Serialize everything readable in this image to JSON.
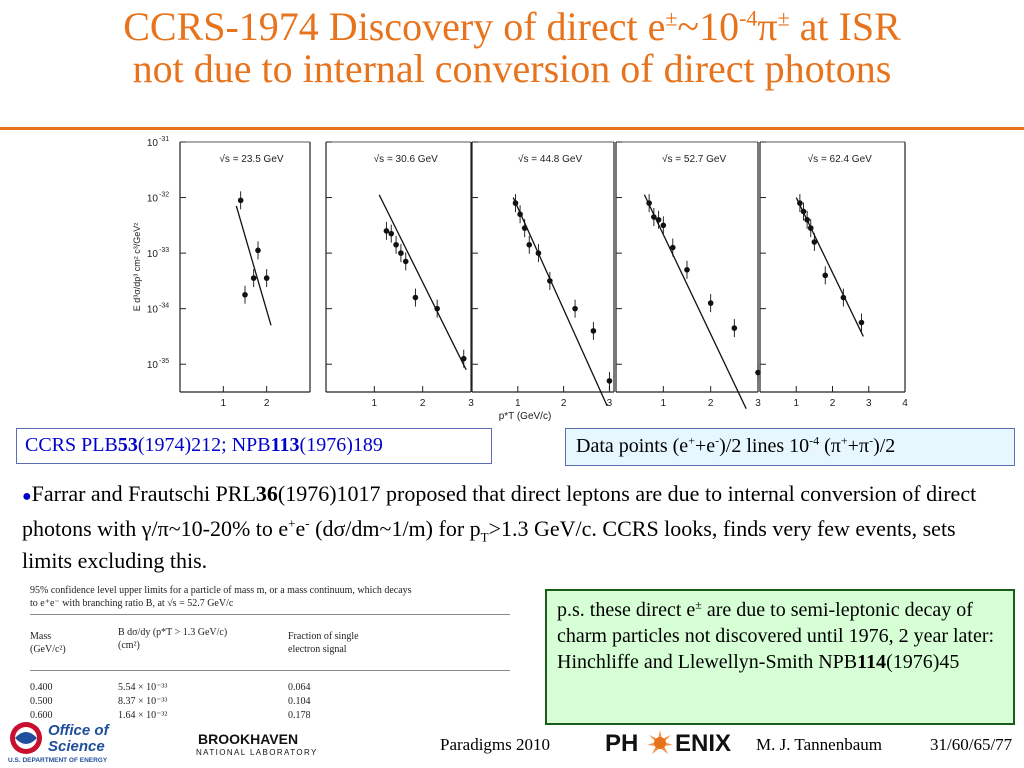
{
  "slide": {
    "title_line1_pre": "CCRS-1974 Discovery of direct e",
    "title_pm1": "±",
    "title_tilde": "~10",
    "title_exp": "-4",
    "title_pi": "π",
    "title_pm2": "±",
    "title_line1_post": " at ISR",
    "title_line2": "not due to internal conversion of direct photons",
    "accent_color": "#E8731D"
  },
  "chart_data": [
    {
      "type": "scatter",
      "title": "√s = 23.5 GeV",
      "xlim": [
        0,
        3
      ],
      "ylim": [
        -35.5,
        -31
      ],
      "y_scale": "log",
      "points": [
        {
          "x": 1.4,
          "y": -32.05
        },
        {
          "x": 1.5,
          "y": -33.75
        },
        {
          "x": 1.7,
          "y": -33.45
        },
        {
          "x": 1.8,
          "y": -32.95
        },
        {
          "x": 2.0,
          "y": -33.45
        }
      ],
      "line": [
        [
          1.3,
          -32.15
        ],
        [
          2.1,
          -34.3
        ]
      ]
    },
    {
      "type": "scatter",
      "title": "√s = 30.6 GeV",
      "xlim": [
        0,
        3
      ],
      "ylim": [
        -35.5,
        -31
      ],
      "y_scale": "log",
      "points": [
        {
          "x": 1.25,
          "y": -32.6
        },
        {
          "x": 1.35,
          "y": -32.65
        },
        {
          "x": 1.45,
          "y": -32.85
        },
        {
          "x": 1.55,
          "y": -33.0
        },
        {
          "x": 1.65,
          "y": -33.15
        },
        {
          "x": 1.85,
          "y": -33.8
        },
        {
          "x": 2.3,
          "y": -34.0
        },
        {
          "x": 2.85,
          "y": -34.9
        }
      ],
      "line": [
        [
          1.1,
          -31.95
        ],
        [
          2.9,
          -35.1
        ]
      ]
    },
    {
      "type": "scatter",
      "title": "√s = 44.8 GeV",
      "xlim": [
        0,
        3.1
      ],
      "ylim": [
        -35.5,
        -31
      ],
      "y_scale": "log",
      "points": [
        {
          "x": 0.95,
          "y": -32.1
        },
        {
          "x": 1.05,
          "y": -32.3
        },
        {
          "x": 1.15,
          "y": -32.55
        },
        {
          "x": 1.25,
          "y": -32.85
        },
        {
          "x": 1.45,
          "y": -33.0
        },
        {
          "x": 1.7,
          "y": -33.5
        },
        {
          "x": 2.25,
          "y": -34.0
        },
        {
          "x": 2.65,
          "y": -34.4
        },
        {
          "x": 3.0,
          "y": -35.3
        }
      ],
      "line": [
        [
          0.9,
          -32.0
        ],
        [
          2.95,
          -35.75
        ]
      ]
    },
    {
      "type": "scatter",
      "title": "√s = 52.7 GeV",
      "xlim": [
        0,
        3
      ],
      "ylim": [
        -35.5,
        -31
      ],
      "y_scale": "log",
      "points": [
        {
          "x": 0.7,
          "y": -32.1
        },
        {
          "x": 0.8,
          "y": -32.35
        },
        {
          "x": 0.9,
          "y": -32.4
        },
        {
          "x": 1.0,
          "y": -32.5
        },
        {
          "x": 1.2,
          "y": -32.9
        },
        {
          "x": 1.5,
          "y": -33.3
        },
        {
          "x": 2.0,
          "y": -33.9
        },
        {
          "x": 2.5,
          "y": -34.35
        },
        {
          "x": 3.0,
          "y": -35.15
        }
      ],
      "line": [
        [
          0.6,
          -31.95
        ],
        [
          2.75,
          -35.8
        ]
      ]
    },
    {
      "type": "scatter",
      "title": "√s = 62.4 GeV",
      "xlim": [
        0,
        4
      ],
      "ylim": [
        -35.5,
        -31
      ],
      "y_scale": "log",
      "points": [
        {
          "x": 1.1,
          "y": -32.1
        },
        {
          "x": 1.2,
          "y": -32.25
        },
        {
          "x": 1.3,
          "y": -32.4
        },
        {
          "x": 1.4,
          "y": -32.55
        },
        {
          "x": 1.5,
          "y": -32.8
        },
        {
          "x": 1.8,
          "y": -33.4
        },
        {
          "x": 2.3,
          "y": -33.8
        },
        {
          "x": 2.8,
          "y": -34.25
        }
      ],
      "line": [
        [
          1.0,
          -32.0
        ],
        [
          2.85,
          -34.5
        ]
      ]
    }
  ],
  "axis_text": {
    "ytick_labels": [
      "10",
      "10",
      "10",
      "10",
      "10"
    ],
    "ytick_exps": [
      "-31",
      "-32",
      "-33",
      "-34",
      "-35"
    ],
    "ylabel": "E d³σ/dp³ cm² c³/GeV²",
    "xlabel": "p*T (GeV/c)"
  },
  "refbox": {
    "pre": "CCRS PLB",
    "b1": "53",
    "mid": "(1974)212; NPB",
    "b2": "113",
    "post": "(1976)189"
  },
  "databox": {
    "text1": "Data points (e",
    "sup1": "+",
    "text2": "+e",
    "sup2": "-",
    "text3": ")/2 lines 10",
    "sup3": "-4",
    "text4": " (π",
    "sup4": "+",
    "text5": "+π",
    "sup5": "-",
    "text6": ")/2"
  },
  "paragraph": {
    "bullet": "●",
    "t1": "Farrar and Frautschi PRL",
    "b1": "36",
    "t2": "(1976)1017 proposed that direct leptons are due to internal conversion of direct photons with γ/π~10-20% to e",
    "s1": "+",
    "t3": "e",
    "s2": "-",
    "t4": " (dσ/dm~1/m) for p",
    "sub1": "T",
    "t5": ">1.3 GeV/c. CCRS looks, finds very few events, sets limits excluding this."
  },
  "table": {
    "caption1": "95% confidence level upper limits for a particle of mass m, or a mass continuum, which decays",
    "caption2": "to e⁺e⁻ with branching ratio B, at √s = 52.7 GeV/c",
    "col1": "Mass",
    "col1b": "(GeV/c²)",
    "col2": "B dσ/dy (p*T > 1.3 GeV/c)",
    "col2b": "(cm²)",
    "col3": "Fraction of single",
    "col3b": "electron signal",
    "rows": [
      {
        "mass": "0.400",
        "b": "5.54 × 10⁻³³",
        "frac": "0.064"
      },
      {
        "mass": "0.500",
        "b": "8.37 × 10⁻³³",
        "frac": "0.104"
      },
      {
        "mass": "0.600",
        "b": "1.64 × 10⁻³²",
        "frac": "0.178"
      }
    ]
  },
  "ps_box": {
    "t1": "p.s. these direct e",
    "s1": "±",
    "t2": " are due to semi-leptonic decay of charm particles not discovered until 1976, 2 year later: Hinchliffe and Llewellyn-Smith NPB",
    "b1": "114",
    "t3": "(1976)45"
  },
  "footer": {
    "doe_line1": "Office of",
    "doe_line2": "Science",
    "doe_line3": "U.S. DEPARTMENT OF ENERGY",
    "bnl_line1": "BROOKHAVEN",
    "bnl_line2": "NATIONAL LABORATORY",
    "paradigms": "Paradigms 2010",
    "phenix_a": "PH",
    "phenix_b": "ENIX",
    "author": "M. J. Tannenbaum",
    "page": "31/60/65/77"
  }
}
